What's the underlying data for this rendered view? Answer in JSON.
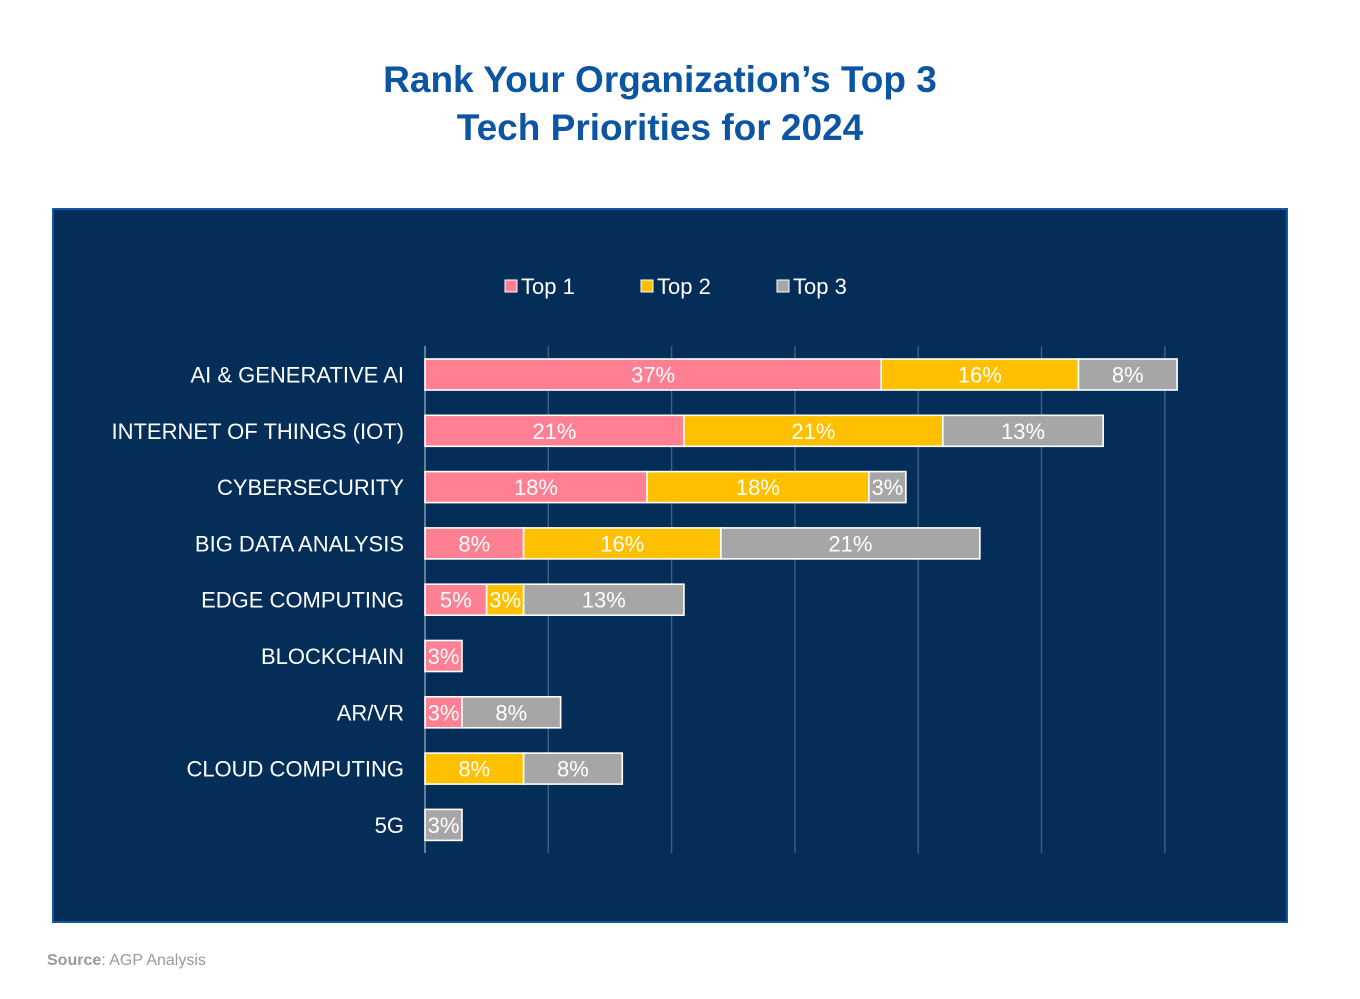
{
  "title_line1": "Rank Your Organization’s Top 3",
  "title_line2": "Tech Priorities for 2024",
  "source_label": "Source",
  "source_text": ": AGP Analysis",
  "colors": {
    "background": "#042e57",
    "top1": "#ff8093",
    "top2": "#ffc000",
    "top3": "#a6a6a6",
    "title": "#0b55a3"
  },
  "chart_data": {
    "type": "bar",
    "orientation": "horizontal",
    "stacked": true,
    "title": "Rank Your Organization’s Top 3 Tech Priorities for 2024",
    "categories": [
      "AI & GENERATIVE AI",
      "INTERNET OF THINGS (IOT)",
      "CYBERSECURITY",
      "BIG DATA ANALYSIS",
      "EDGE COMPUTING",
      "BLOCKCHAIN",
      "AR/VR",
      "CLOUD COMPUTING",
      "5G"
    ],
    "series": [
      {
        "name": "Top 1",
        "color": "#ff8093",
        "values": [
          37,
          21,
          18,
          8,
          5,
          3,
          3,
          0,
          0
        ]
      },
      {
        "name": "Top 2",
        "color": "#ffc000",
        "values": [
          16,
          21,
          18,
          16,
          3,
          0,
          0,
          8,
          0
        ]
      },
      {
        "name": "Top 3",
        "color": "#a6a6a6",
        "values": [
          8,
          13,
          3,
          21,
          13,
          0,
          8,
          8,
          3
        ]
      }
    ],
    "value_suffix": "%",
    "xlim": [
      0,
      60
    ],
    "x_gridlines": [
      10,
      20,
      30,
      40,
      50,
      60
    ],
    "legend_position": "top-center",
    "xlabel": "",
    "ylabel": ""
  }
}
